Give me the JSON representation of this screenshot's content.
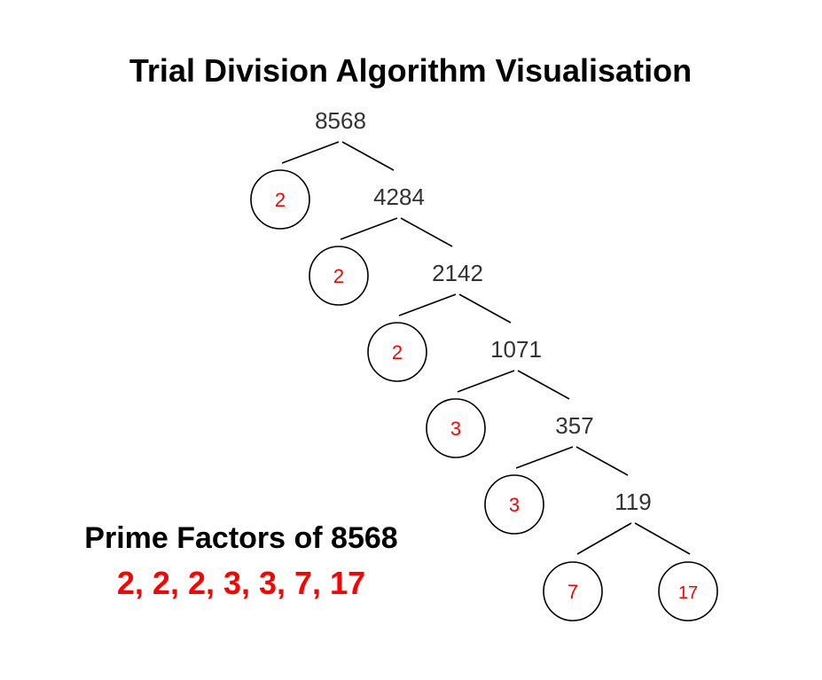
{
  "title": "Trial Division Algorithm Visualisation",
  "colors": {
    "factor": "#ff0000",
    "number": "#333333",
    "line": "#000000"
  },
  "root": "8568",
  "steps": [
    {
      "factor": "2",
      "quotient": "4284"
    },
    {
      "factor": "2",
      "quotient": "2142"
    },
    {
      "factor": "2",
      "quotient": "1071"
    },
    {
      "factor": "3",
      "quotient": "357"
    },
    {
      "factor": "3",
      "quotient": "119"
    }
  ],
  "final_factors": [
    "7",
    "17"
  ],
  "summary": {
    "title": "Prime Factors of 8568",
    "list": "2, 2, 2, 3, 3, 7, 17"
  }
}
